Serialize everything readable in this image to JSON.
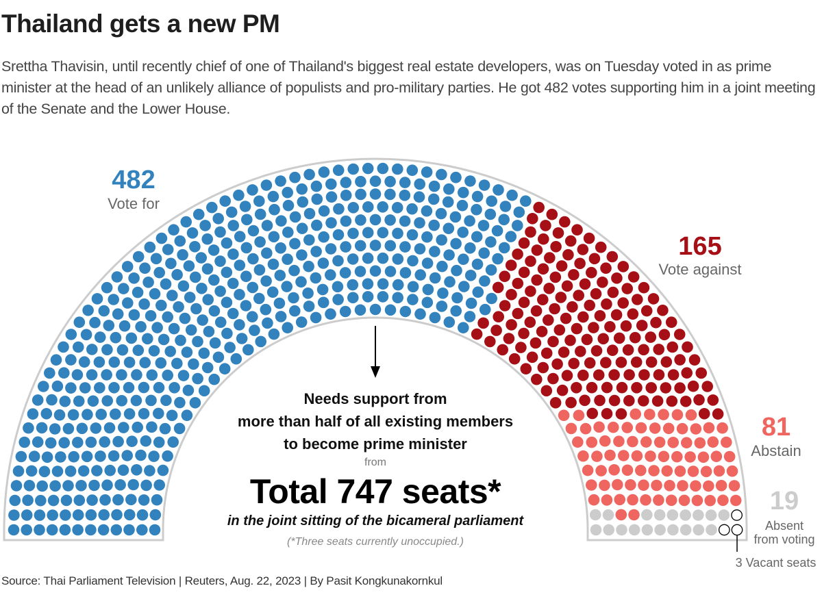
{
  "header": {
    "title": "Thailand gets a new PM",
    "subtitle": "Srettha Thavisin, until recently chief of one of Thailand's biggest real estate developers, was on Tuesday voted in as prime minister at the head of an unlikely alliance of populists and pro-military parties. He got 482 votes supporting him in a joint meeting of the Senate and the Lower House."
  },
  "chart_data": {
    "type": "parliament",
    "title": "Thailand gets a new PM",
    "rows": 12,
    "total_seats_label": "Total 747 seats*",
    "series": [
      {
        "name": "Vote for",
        "value": 482,
        "label": "482",
        "color": "#3182BD"
      },
      {
        "name": "Vote against",
        "value": 165,
        "label": "165",
        "color": "#A50F15"
      },
      {
        "name": "Abstain",
        "value": 81,
        "label": "81",
        "color": "#EF6560"
      },
      {
        "name": "Absent from voting",
        "value": 19,
        "label": "19",
        "color": "#CCCCCC"
      },
      {
        "name": "Vacant seats",
        "value": 3,
        "label": "3 Vacant seats",
        "color": "#FFFFFF",
        "stroke": "#000000"
      }
    ],
    "annotations": {
      "needs_lines": [
        "Needs support from",
        "more than half of all existing members",
        "to become prime minister"
      ],
      "from": "from",
      "total": "Total 747 seats*",
      "sitting": "in the joint sitting of the bicameral parliament",
      "note": "(*Three seats currently unoccupied.)"
    }
  },
  "labels": {
    "for_num": "482",
    "for_txt": "Vote for",
    "against_num": "165",
    "against_txt": "Vote against",
    "abstain_num": "81",
    "abstain_txt": "Abstain",
    "absent_num": "19",
    "absent_txt_1": "Absent",
    "absent_txt_2": "from voting",
    "vacant_txt": "3 Vacant seats"
  },
  "footer": {
    "source": "Source: Thai Parliament Television | Reuters, Aug. 22, 2023 | By Pasit Kongkunakornkul"
  }
}
